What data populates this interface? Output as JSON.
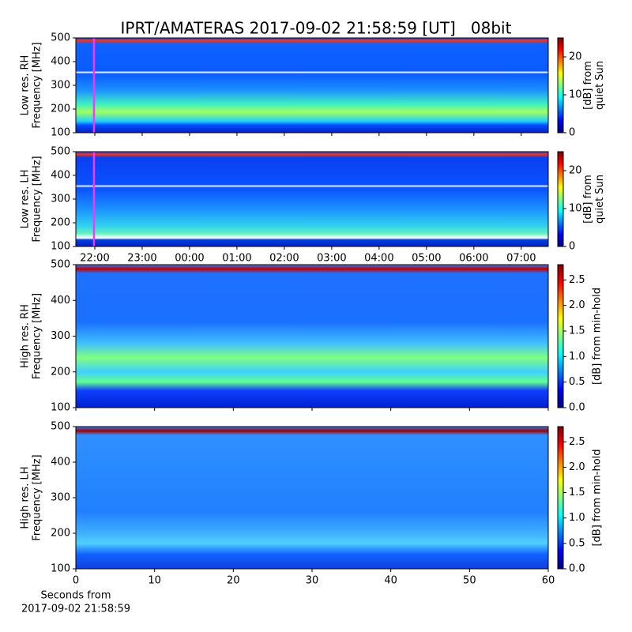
{
  "title": "IPRT/AMATERAS 2017-09-02 21:58:59 [UT]   08bit",
  "chart_data": [
    {
      "type": "heatmap",
      "ylabel": [
        "Low res. RH",
        "Frequency [MHz]"
      ],
      "ylim": [
        100,
        500
      ],
      "yticks": [
        100,
        200,
        300,
        400,
        500
      ],
      "xlim": [
        21.6,
        31.57
      ],
      "xticks": [
        {
          "value": 22,
          "label": "22:00"
        },
        {
          "value": 23,
          "label": "23:00"
        },
        {
          "value": 24,
          "label": "00:00"
        },
        {
          "value": 25,
          "label": "01:00"
        },
        {
          "value": 26,
          "label": "02:00"
        },
        {
          "value": 27,
          "label": "03:00"
        },
        {
          "value": 28,
          "label": "04:00"
        },
        {
          "value": 29,
          "label": "05:00"
        },
        {
          "value": 30,
          "label": "06:00"
        },
        {
          "value": 31,
          "label": "07:00"
        }
      ],
      "show_xticklabels": false,
      "marker_time": 21.983,
      "marker_color": "#ff33ff",
      "clabel": [
        "[dB] from",
        "quiet Sun"
      ],
      "clim": [
        0,
        25
      ],
      "cticks": [
        0,
        10,
        20
      ]
    },
    {
      "type": "heatmap",
      "ylabel": [
        "Low res. LH",
        "Frequency [MHz]"
      ],
      "ylim": [
        100,
        500
      ],
      "yticks": [
        100,
        200,
        300,
        400,
        500
      ],
      "xlim": [
        21.6,
        31.57
      ],
      "xticks": [
        {
          "value": 22,
          "label": "22:00"
        },
        {
          "value": 23,
          "label": "23:00"
        },
        {
          "value": 24,
          "label": "00:00"
        },
        {
          "value": 25,
          "label": "01:00"
        },
        {
          "value": 26,
          "label": "02:00"
        },
        {
          "value": 27,
          "label": "03:00"
        },
        {
          "value": 28,
          "label": "04:00"
        },
        {
          "value": 29,
          "label": "05:00"
        },
        {
          "value": 30,
          "label": "06:00"
        },
        {
          "value": 31,
          "label": "07:00"
        }
      ],
      "show_xticklabels": true,
      "marker_time": 21.983,
      "marker_color": "#ff33ff",
      "clabel": [
        "[dB] from",
        "quiet Sun"
      ],
      "clim": [
        0,
        25
      ],
      "cticks": [
        0,
        10,
        20
      ]
    },
    {
      "type": "heatmap",
      "ylabel": [
        "High res. RH",
        "Frequency [MHz]"
      ],
      "ylim": [
        100,
        500
      ],
      "yticks": [
        100,
        200,
        300,
        400,
        500
      ],
      "xlim": [
        0,
        60
      ],
      "xticks": [
        0,
        10,
        20,
        30,
        40,
        50,
        60
      ],
      "show_xticklabels": false,
      "clabel": [
        "[dB] from min-hold"
      ],
      "clim": [
        0,
        2.8
      ],
      "cticks": [
        {
          "value": 0,
          "label": "0.0"
        },
        {
          "value": 0.5,
          "label": "0.5"
        },
        {
          "value": 1,
          "label": "1.0"
        },
        {
          "value": 1.5,
          "label": "1.5"
        },
        {
          "value": 2,
          "label": "2.0"
        },
        {
          "value": 2.5,
          "label": "2.5"
        }
      ]
    },
    {
      "type": "heatmap",
      "ylabel": [
        "High res. LH",
        "Frequency [MHz]"
      ],
      "ylim": [
        100,
        500
      ],
      "yticks": [
        100,
        200,
        300,
        400,
        500
      ],
      "xlim": [
        0,
        60
      ],
      "xticks": [
        0,
        10,
        20,
        30,
        40,
        50,
        60
      ],
      "show_xticklabels": true,
      "xlabel": [
        "Seconds from",
        "2017-09-02 21:58:59"
      ],
      "clabel": [
        "[dB] from min-hold"
      ],
      "clim": [
        0,
        2.8
      ],
      "cticks": [
        {
          "value": 0,
          "label": "0.0"
        },
        {
          "value": 0.5,
          "label": "0.5"
        },
        {
          "value": 1,
          "label": "1.0"
        },
        {
          "value": 1.5,
          "label": "1.5"
        },
        {
          "value": 2,
          "label": "2.0"
        },
        {
          "value": 2.5,
          "label": "2.5"
        }
      ]
    }
  ]
}
